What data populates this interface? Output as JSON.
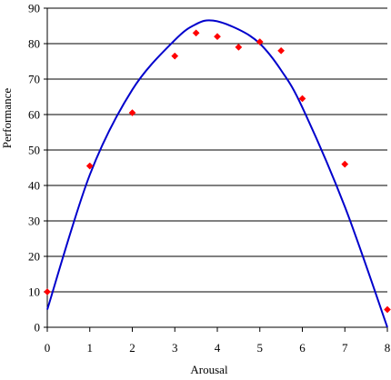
{
  "chart_data": {
    "type": "scatter",
    "title": "",
    "xlabel": "Arousal",
    "ylabel": "Performance",
    "xlim": [
      0,
      8
    ],
    "ylim": [
      0,
      90
    ],
    "x_ticks": [
      0,
      1,
      2,
      3,
      4,
      5,
      6,
      7,
      8
    ],
    "y_ticks": [
      0,
      10,
      20,
      30,
      40,
      50,
      60,
      70,
      80,
      90
    ],
    "grid": "horizontal",
    "legend": "none",
    "series": [
      {
        "kind": "points",
        "marker": "diamond",
        "color": "#ff0000",
        "points": [
          {
            "x": 0,
            "y": 10
          },
          {
            "x": 1,
            "y": 45.5
          },
          {
            "x": 2,
            "y": 60.5
          },
          {
            "x": 3,
            "y": 76.5
          },
          {
            "x": 3.5,
            "y": 83
          },
          {
            "x": 4,
            "y": 82
          },
          {
            "x": 4.5,
            "y": 79
          },
          {
            "x": 5,
            "y": 80.5
          },
          {
            "x": 5.5,
            "y": 78
          },
          {
            "x": 6,
            "y": 64.5
          },
          {
            "x": 7,
            "y": 46
          },
          {
            "x": 8,
            "y": 5
          }
        ]
      },
      {
        "kind": "fitted-curve",
        "color": "#0000cc",
        "points": [
          {
            "x": 0,
            "y": 5
          },
          {
            "x": 1,
            "y": 43
          },
          {
            "x": 2,
            "y": 67
          },
          {
            "x": 3,
            "y": 81
          },
          {
            "x": 3.5,
            "y": 85.5
          },
          {
            "x": 3.9,
            "y": 86.5
          },
          {
            "x": 4.5,
            "y": 84
          },
          {
            "x": 5,
            "y": 80
          },
          {
            "x": 5.5,
            "y": 72.5
          },
          {
            "x": 6,
            "y": 62
          },
          {
            "x": 7,
            "y": 34
          },
          {
            "x": 8,
            "y": 0
          }
        ]
      }
    ]
  }
}
